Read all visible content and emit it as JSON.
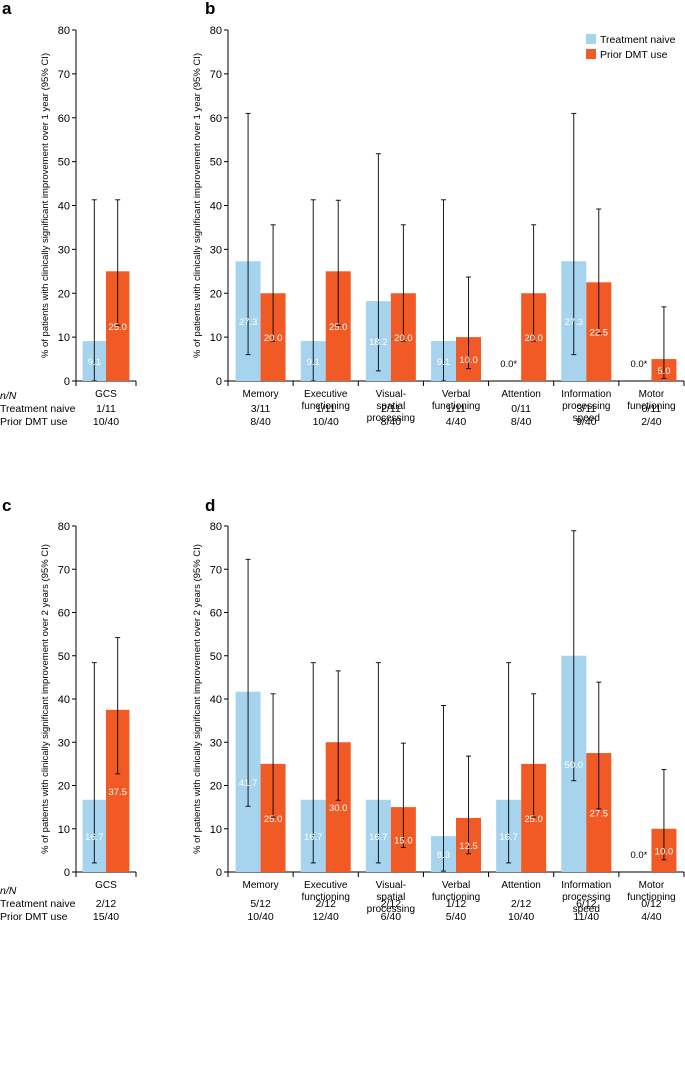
{
  "legend": {
    "treatment_naive": "Treatment naive",
    "prior_dmt": "Prior DMT use"
  },
  "colors": {
    "treatment_naive": "#a6d4ef",
    "prior_dmt": "#f15a24"
  },
  "nn_header": "n/N",
  "row_labels": {
    "treatment_naive": "Treatment naive",
    "prior_dmt": "Prior DMT use"
  },
  "chart_data": [
    {
      "panel": "a",
      "type": "bar",
      "ylabel": "% of patients with clinically significant improvement over 1 year (95% CI)",
      "ylim": [
        0,
        80
      ],
      "yticks": [
        0,
        10,
        20,
        30,
        40,
        50,
        60,
        70,
        80
      ],
      "categories": [
        "GCS"
      ],
      "series": [
        {
          "name": "Treatment naive",
          "values": [
            9.1
          ],
          "labels": [
            "9.1"
          ],
          "ci": [
            [
              0,
              41.3
            ]
          ]
        },
        {
          "name": "Prior DMT use",
          "values": [
            25.0
          ],
          "labels": [
            "25.0"
          ],
          "ci": [
            [
              12.7,
              41.3
            ]
          ]
        }
      ],
      "nn": {
        "treatment_naive": [
          "1/11"
        ],
        "prior_dmt": [
          "10/40"
        ]
      }
    },
    {
      "panel": "b",
      "type": "bar",
      "ylabel": "% of patients with clinically significant improvement over 1 year (95% CI)",
      "ylim": [
        0,
        80
      ],
      "yticks": [
        0,
        10,
        20,
        30,
        40,
        50,
        60,
        70,
        80
      ],
      "categories": [
        "Memory",
        "Executive\nfunctioning",
        "Visual-\nspatial\nprocessing",
        "Verbal\nfunctioning",
        "Attention",
        "Information\nprocessing\nspeed",
        "Motor\nfunctioning"
      ],
      "series": [
        {
          "name": "Treatment naive",
          "values": [
            27.3,
            9.1,
            18.2,
            9.1,
            0.0,
            27.3,
            0.0
          ],
          "labels": [
            "27.3",
            "9.1",
            "18.2",
            "9.1",
            "0.0*",
            "27.3",
            "0.0*"
          ],
          "ci": [
            [
              6.0,
              61.0
            ],
            [
              0,
              41.3
            ],
            [
              2.3,
              51.8
            ],
            [
              0,
              41.3
            ],
            null,
            [
              6.0,
              61.0
            ],
            null
          ]
        },
        {
          "name": "Prior DMT use",
          "values": [
            20.0,
            25.0,
            20.0,
            10.0,
            20.0,
            22.5,
            5.0
          ],
          "labels": [
            "20.0",
            "25.0",
            "20.0",
            "10.0",
            "20.0",
            "22.5",
            "5.0"
          ],
          "ci": [
            [
              9.1,
              35.6
            ],
            [
              12.7,
              41.2
            ],
            [
              9.1,
              35.6
            ],
            [
              2.8,
              23.7
            ],
            [
              9.1,
              35.6
            ],
            [
              10.8,
              39.2
            ],
            [
              0.6,
              16.9
            ]
          ]
        }
      ],
      "nn": {
        "treatment_naive": [
          "3/11",
          "1/11",
          "2/11",
          "1/11",
          "0/11",
          "3/11",
          "0/11"
        ],
        "prior_dmt": [
          "8/40",
          "10/40",
          "8/40",
          "4/40",
          "8/40",
          "9/40",
          "2/40"
        ]
      }
    },
    {
      "panel": "c",
      "type": "bar",
      "ylabel": "% of patients with clinically significant improvement over 2 years (95% CI)",
      "ylim": [
        0,
        80
      ],
      "yticks": [
        0,
        10,
        20,
        30,
        40,
        50,
        60,
        70,
        80
      ],
      "categories": [
        "GCS"
      ],
      "series": [
        {
          "name": "Treatment naive",
          "values": [
            16.7
          ],
          "labels": [
            "16.7"
          ],
          "ci": [
            [
              2.1,
              48.4
            ]
          ]
        },
        {
          "name": "Prior DMT use",
          "values": [
            37.5
          ],
          "labels": [
            "37.5"
          ],
          "ci": [
            [
              22.7,
              54.2
            ]
          ]
        }
      ],
      "nn": {
        "treatment_naive": [
          "2/12"
        ],
        "prior_dmt": [
          "15/40"
        ]
      }
    },
    {
      "panel": "d",
      "type": "bar",
      "ylabel": "% of patients with clinically significant improvement over 2 years (95% CI)",
      "ylim": [
        0,
        80
      ],
      "yticks": [
        0,
        10,
        20,
        30,
        40,
        50,
        60,
        70,
        80
      ],
      "categories": [
        "Memory",
        "Executive\nfunctioning",
        "Visual-\nspatial\nprocessing",
        "Verbal\nfunctioning",
        "Attention",
        "Information\nprocessing\nspeed",
        "Motor\nfunctioning"
      ],
      "series": [
        {
          "name": "Treatment naive",
          "values": [
            41.7,
            16.7,
            16.7,
            8.3,
            16.7,
            50.0,
            0.0
          ],
          "labels": [
            "41.7",
            "16.7",
            "16.7",
            "8.3",
            "16.7",
            "50.0",
            "0.0*"
          ],
          "ci": [
            [
              15.2,
              72.3
            ],
            [
              2.1,
              48.4
            ],
            [
              2.1,
              48.4
            ],
            [
              0.2,
              38.5
            ],
            [
              2.1,
              48.4
            ],
            [
              21.1,
              78.9
            ],
            null
          ]
        },
        {
          "name": "Prior DMT use",
          "values": [
            25.0,
            30.0,
            15.0,
            12.5,
            25.0,
            27.5,
            10.0
          ],
          "labels": [
            "25.0",
            "30.0",
            "15.0",
            "12.5",
            "25.0",
            "27.5",
            "10.0"
          ],
          "ci": [
            [
              12.7,
              41.2
            ],
            [
              16.6,
              46.5
            ],
            [
              5.7,
              29.8
            ],
            [
              4.2,
              26.8
            ],
            [
              12.7,
              41.2
            ],
            [
              14.6,
              43.9
            ],
            [
              2.8,
              23.7
            ]
          ]
        }
      ],
      "nn": {
        "treatment_naive": [
          "5/12",
          "2/12",
          "2/12",
          "1/12",
          "2/12",
          "6/12",
          "0/12"
        ],
        "prior_dmt": [
          "10/40",
          "12/40",
          "6/40",
          "5/40",
          "10/40",
          "11/40",
          "4/40"
        ]
      }
    }
  ]
}
